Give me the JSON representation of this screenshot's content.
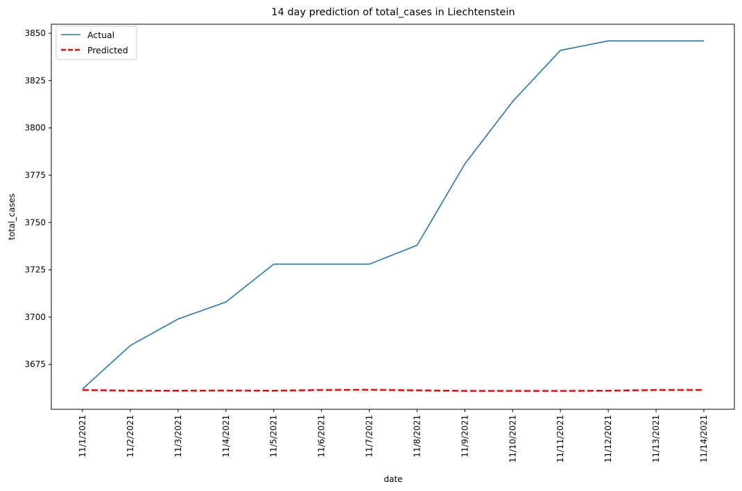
{
  "chart_data": {
    "type": "line",
    "title": "14 day prediction of total_cases in Liechtenstein",
    "xlabel": "date",
    "ylabel": "total_cases",
    "x": [
      "11/1/2021",
      "11/2/2021",
      "11/3/2021",
      "11/4/2021",
      "11/5/2021",
      "11/6/2021",
      "11/7/2021",
      "11/8/2021",
      "11/9/2021",
      "11/10/2021",
      "11/11/2021",
      "11/12/2021",
      "11/13/2021",
      "11/14/2021"
    ],
    "series": [
      {
        "name": "Actual",
        "color": "#1f77b4",
        "style": "solid",
        "values": [
          3662,
          3685,
          3699,
          3708,
          3728,
          3728,
          3728,
          3738,
          3781,
          3814,
          3841,
          3846,
          3846,
          3846
        ]
      },
      {
        "name": "Predicted",
        "color": "#ff0000",
        "style": "dashed",
        "values": [
          3661.5,
          3661.1,
          3661.1,
          3661.2,
          3661.1,
          3661.5,
          3661.6,
          3661.3,
          3661.0,
          3661.0,
          3661.0,
          3661.1,
          3661.5,
          3661.5
        ]
      }
    ],
    "ylim": [
      3651.3,
      3854.8
    ],
    "yticks": [
      3675,
      3700,
      3725,
      3750,
      3775,
      3800,
      3825,
      3850
    ],
    "legend": "top-left",
    "grid": false
  }
}
